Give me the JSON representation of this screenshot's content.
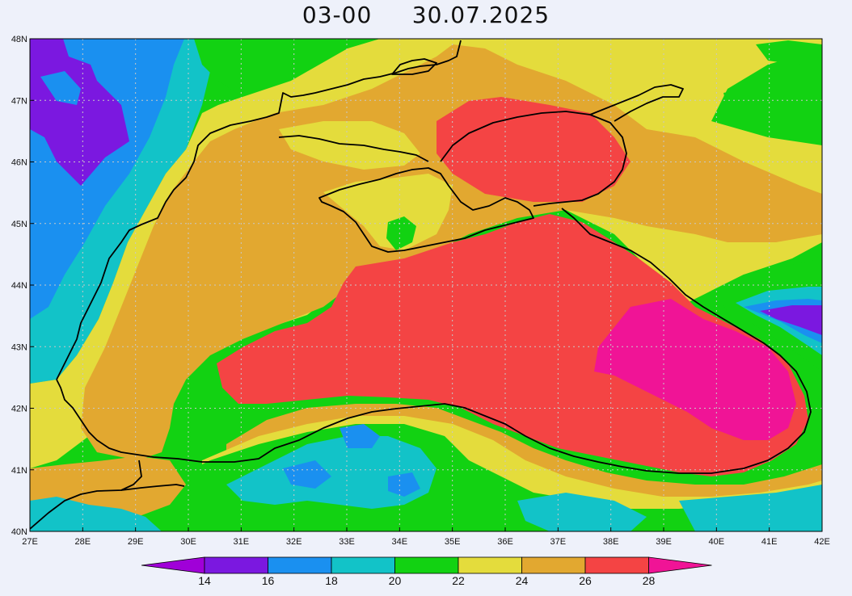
{
  "title": {
    "time": "03-00",
    "date": "30.07.2025"
  },
  "axes": {
    "lat_labels": [
      "48N",
      "47N",
      "46N",
      "45N",
      "44N",
      "43N",
      "42N",
      "41N",
      "40N"
    ],
    "lon_labels": [
      "27E",
      "28E",
      "29E",
      "30E",
      "31E",
      "32E",
      "33E",
      "34E",
      "35E",
      "36E",
      "37E",
      "38E",
      "39E",
      "40E",
      "41E",
      "42E"
    ],
    "lat_range": [
      40,
      48
    ],
    "lon_range": [
      27,
      42
    ],
    "grid": true
  },
  "colorbar": {
    "labels": [
      "14",
      "16",
      "18",
      "20",
      "22",
      "24",
      "26",
      "28"
    ],
    "colors": [
      "#a000d8",
      "#7b18e0",
      "#1a90f0",
      "#12c3c8",
      "#12d212",
      "#e4dc3c",
      "#e2a830",
      "#f44444",
      "#f01496"
    ]
  },
  "colors": {
    "lt14": "#a000d8",
    "c14_16": "#7b18e0",
    "c16_18": "#1a90f0",
    "c18_20": "#12c3c8",
    "c20_22": "#12d212",
    "c22_24": "#e4dc3c",
    "c24_26": "#e2a830",
    "c26_28": "#f44444",
    "gt28": "#f01496",
    "coast": "#000000",
    "grid": "#c8c8c8",
    "background": "#eef1fa"
  }
}
